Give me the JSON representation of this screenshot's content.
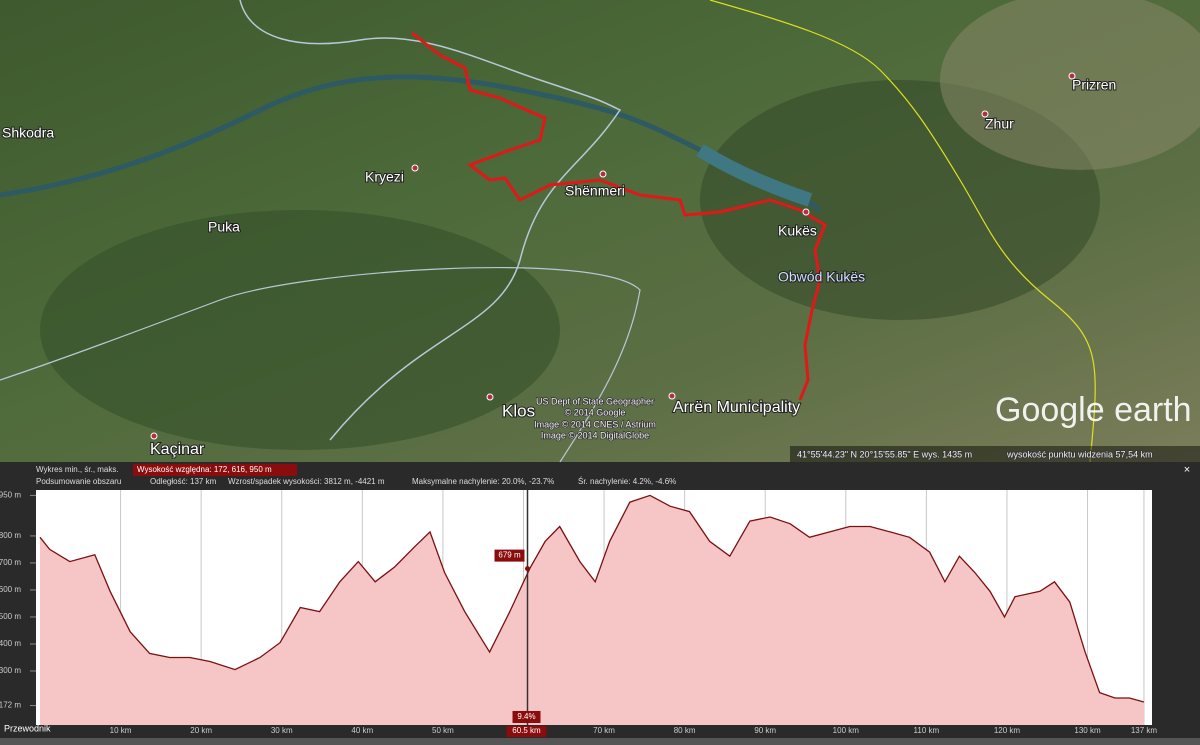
{
  "map": {
    "places": [
      "Shkodra",
      "Kryezi",
      "Puka",
      "Shënmeri",
      "Kukës",
      "Obwód Kukës",
      "Prizren",
      "Zhur",
      "Klos",
      "Arrën Municipality",
      "Kaçinar"
    ],
    "copyright": [
      "US Dept of State Geographer",
      "© 2014 Google",
      "Image © 2014 CNES / Astrium",
      "Image © 2014 DigitalGlobe"
    ],
    "logo": "Google earth",
    "status": {
      "coords": "41°55'44.23\" N   20°15'55.85\" E   wys. 1435 m",
      "view": "wysokość punktu widzenia  57,54 km"
    }
  },
  "profile": {
    "type": "line",
    "header": [
      "Wykres  min., śr., maks.",
      "Wysokość względna: 172, 616, 950 m",
      "Podsumowanie obszaru",
      "Odległość: 137 km",
      "Wzrost/spadek wysokości: 3812 m, -4421 m",
      "Maksymalne nachylenie: 20.0%, -23.7%",
      "Śr. nachylenie: 4.2%, -4.6%"
    ],
    "x": [
      0,
      1.2,
      3.7,
      6.8,
      8.7,
      11.2,
      13.6,
      16.1,
      18.6,
      21.1,
      24.2,
      27.3,
      29.8,
      32.3,
      34.7,
      37.2,
      39.5,
      41.6,
      44.0,
      46.5,
      48.4,
      50.2,
      52.7,
      55.8,
      58.3,
      60.8,
      62.7,
      64.5,
      67.0,
      68.9,
      70.7,
      73.2,
      75.7,
      78.2,
      80.6,
      83.1,
      85.6,
      88.1,
      90.6,
      93.1,
      95.5,
      98.0,
      100.5,
      103.0,
      105.5,
      107.9,
      110.4,
      112.3,
      114.1,
      116.0,
      117.9,
      119.7,
      121.0,
      124.1,
      125.9,
      127.8,
      129.7,
      131.5,
      133.4,
      135.2,
      137
    ],
    "values": [
      795,
      750,
      705,
      730,
      595,
      445,
      365,
      350,
      350,
      335,
      305,
      350,
      405,
      535,
      520,
      630,
      705,
      630,
      685,
      760,
      815,
      665,
      520,
      370,
      520,
      680,
      780,
      835,
      705,
      630,
      780,
      925,
      950,
      910,
      890,
      780,
      725,
      855,
      870,
      845,
      795,
      815,
      835,
      835,
      815,
      795,
      740,
      630,
      725,
      665,
      595,
      500,
      575,
      595,
      630,
      555,
      370,
      220,
      200,
      200,
      185
    ],
    "color": "#7a1010",
    "fill": "#f6c6c6",
    "xlim": [
      0,
      138
    ],
    "ylim": [
      100,
      970
    ],
    "xticks": [
      {
        "value": 10,
        "label": "10 km"
      },
      {
        "value": 20,
        "label": "20 km"
      },
      {
        "value": 30,
        "label": "30 km"
      },
      {
        "value": 40,
        "label": "40 km"
      },
      {
        "value": 50,
        "label": "50 km"
      },
      {
        "value": 60,
        "label": "60 km"
      },
      {
        "value": 70,
        "label": "70 km"
      },
      {
        "value": 80,
        "label": "80 km"
      },
      {
        "value": 90,
        "label": "90 km"
      },
      {
        "value": 100,
        "label": "100 km"
      },
      {
        "value": 110,
        "label": "110 km"
      },
      {
        "value": 120,
        "label": "120 km"
      },
      {
        "value": 130,
        "label": "130 km"
      },
      {
        "value": 137,
        "label": "137 km"
      }
    ],
    "yticks": [
      {
        "value": 950,
        "label": "950 m"
      },
      {
        "value": 800,
        "label": "800 m"
      },
      {
        "value": 700,
        "label": "700 m"
      },
      {
        "value": 600,
        "label": "600 m"
      },
      {
        "value": 500,
        "label": "500 m"
      },
      {
        "value": 400,
        "label": "400 m"
      },
      {
        "value": 300,
        "label": "300 m"
      },
      {
        "value": 172,
        "label": "172 m"
      }
    ],
    "grid": true,
    "cursor": {
      "x": {
        "value": 60.5,
        "label": "60.5 km"
      },
      "value": {
        "value": 679,
        "label": "679 m"
      },
      "slope": {
        "value": 9.4,
        "label": "9.4%"
      }
    }
  },
  "sidebar": "Przewodnik"
}
